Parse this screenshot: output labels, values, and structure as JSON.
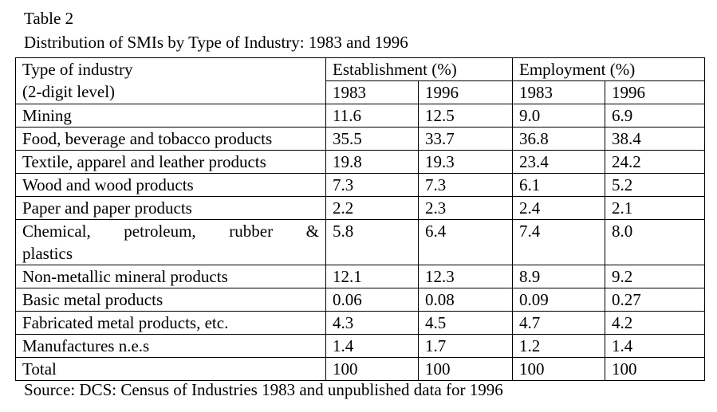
{
  "table_label": "Table 2",
  "caption": "Distribution of SMIs by Type of Industry:  1983 and 1996",
  "header": {
    "col1_line1": "Type of industry",
    "col1_line2": "(2-digit level)",
    "group1": "Establishment (%)",
    "group2": "Employment (%)",
    "years": [
      "1983",
      "1996",
      "1983",
      "1996"
    ]
  },
  "rows": [
    {
      "industry": "Mining",
      "values": [
        "11.6",
        "12.5",
        "9.0",
        "6.9"
      ]
    },
    {
      "industry": "Food, beverage and tobacco products",
      "values": [
        "35.5",
        "33.7",
        "36.8",
        "38.4"
      ]
    },
    {
      "industry": "Textile, apparel and leather products",
      "values": [
        "19.8",
        "19.3",
        "23.4",
        "24.2"
      ]
    },
    {
      "industry": "Wood and wood products",
      "values": [
        "7.3",
        "7.3",
        "6.1",
        "5.2"
      ]
    },
    {
      "industry": "Paper and paper products",
      "values": [
        "2.2",
        "2.3",
        "2.4",
        "2.1"
      ]
    },
    {
      "industry_words": [
        "Chemical,",
        "petroleum,",
        "rubber",
        "&"
      ],
      "industry_line2": "plastics",
      "values": [
        "5.8",
        "6.4",
        "7.4",
        "8.0"
      ]
    },
    {
      "industry": "Non-metallic mineral products",
      "values": [
        "12.1",
        "12.3",
        "8.9",
        "9.2"
      ]
    },
    {
      "industry": "Basic metal products",
      "values": [
        "0.06",
        "0.08",
        "0.09",
        "0.27"
      ]
    },
    {
      "industry": "Fabricated metal products, etc.",
      "values": [
        "4.3",
        "4.5",
        "4.7",
        "4.2"
      ]
    },
    {
      "industry": "Manufactures n.e.s",
      "values": [
        "1.4",
        "1.7",
        "1.2",
        "1.4"
      ]
    },
    {
      "industry": "Total",
      "values": [
        "100",
        "100",
        "100",
        "100"
      ]
    }
  ],
  "source": "Source: DCS: Census of Industries 1983 and unpublished data for 1996"
}
